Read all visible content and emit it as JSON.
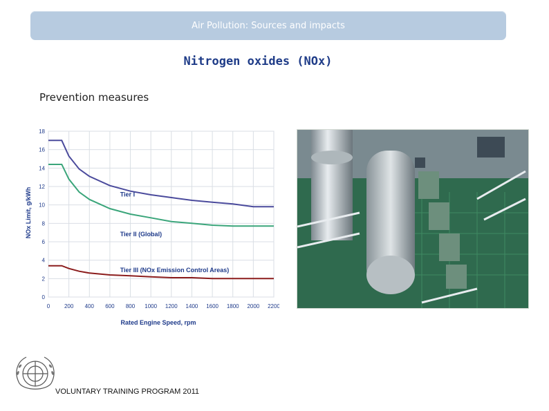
{
  "header": {
    "title": "Air Pollution: Sources and impacts"
  },
  "slide": {
    "title": "Nitrogen oxides (NOx)",
    "subtitle": "Prevention measures"
  },
  "footer": {
    "program": "VOLUNTARY TRAINING PROGRAM 2011"
  },
  "chart_data": {
    "type": "line",
    "xlabel": "Rated Engine Speed, rpm",
    "ylabel": "NOx Limit, g/kWh",
    "xlim": [
      0,
      2200
    ],
    "ylim": [
      0,
      18
    ],
    "x_ticks": [
      "0",
      "200",
      "400",
      "600",
      "800",
      "1000",
      "1200",
      "1400",
      "1600",
      "1800",
      "2000",
      "2200"
    ],
    "y_ticks": [
      "0",
      "2",
      "4",
      "6",
      "8",
      "10",
      "12",
      "14",
      "16",
      "18"
    ],
    "grid": true,
    "series": [
      {
        "name": "Tier I",
        "color": "#4a4a9c",
        "points": [
          [
            0,
            17.0
          ],
          [
            130,
            17.0
          ],
          [
            200,
            15.3
          ],
          [
            300,
            13.9
          ],
          [
            400,
            13.1
          ],
          [
            600,
            12.1
          ],
          [
            800,
            11.5
          ],
          [
            1000,
            11.1
          ],
          [
            1200,
            10.8
          ],
          [
            1400,
            10.5
          ],
          [
            1600,
            10.3
          ],
          [
            1800,
            10.1
          ],
          [
            2000,
            9.8
          ],
          [
            2200,
            9.8
          ]
        ]
      },
      {
        "name": "Tier II (Global)",
        "color": "#3aa57a",
        "points": [
          [
            0,
            14.4
          ],
          [
            130,
            14.4
          ],
          [
            200,
            12.8
          ],
          [
            300,
            11.4
          ],
          [
            400,
            10.6
          ],
          [
            600,
            9.6
          ],
          [
            800,
            9.0
          ],
          [
            1000,
            8.6
          ],
          [
            1200,
            8.2
          ],
          [
            1400,
            8.0
          ],
          [
            1600,
            7.8
          ],
          [
            1800,
            7.7
          ],
          [
            2000,
            7.7
          ],
          [
            2200,
            7.7
          ]
        ]
      },
      {
        "name": "Tier III (NOx Emission Control Areas)",
        "color": "#8b1c1c",
        "points": [
          [
            0,
            3.4
          ],
          [
            130,
            3.4
          ],
          [
            200,
            3.1
          ],
          [
            300,
            2.8
          ],
          [
            400,
            2.6
          ],
          [
            600,
            2.4
          ],
          [
            800,
            2.3
          ],
          [
            1000,
            2.2
          ],
          [
            1200,
            2.1
          ],
          [
            1400,
            2.1
          ],
          [
            1600,
            2.0
          ],
          [
            1800,
            2.0
          ],
          [
            2000,
            2.0
          ],
          [
            2200,
            2.0
          ]
        ]
      }
    ]
  },
  "photo": {
    "alt": "engine-room"
  }
}
